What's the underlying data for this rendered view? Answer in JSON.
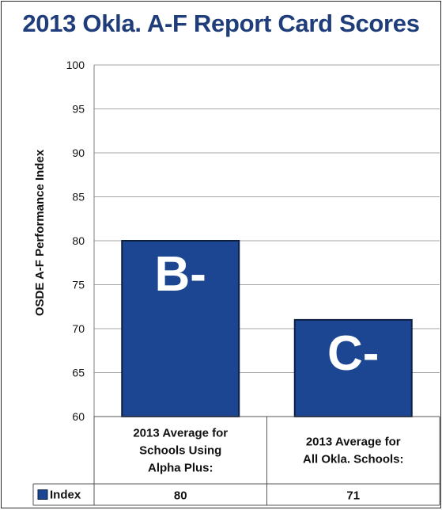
{
  "chart_data": {
    "type": "bar",
    "title": "2013 Okla. A-F Report Card Scores",
    "ylabel": "OSDE A-F Performance Index",
    "xlabel": "",
    "ylim": [
      60,
      100
    ],
    "yticks": [
      60,
      65,
      70,
      75,
      80,
      85,
      90,
      95,
      100
    ],
    "y_tick_labels": [
      "60",
      "65",
      "70",
      "75",
      "80",
      "85",
      "90",
      "95",
      "100"
    ],
    "grid": true,
    "categories": [
      [
        "2013 Average for",
        "Schools Using",
        "Alpha Plus:"
      ],
      [
        "2013 Average for",
        "All Okla. Schools:"
      ]
    ],
    "series": [
      {
        "name": "Index",
        "values": [
          80,
          71
        ],
        "value_labels": [
          "80",
          "71"
        ],
        "color": "#1c4592"
      }
    ],
    "bar_annotations": [
      "B-",
      "C-"
    ],
    "legend": "data-table"
  },
  "colors": {
    "title": "#1f3d7a",
    "bar": "#1c4592",
    "bar_edge": "#0d1f45",
    "grid": "#a6a6a6",
    "plot_border": "#7f7f7f",
    "text": "#111111"
  }
}
